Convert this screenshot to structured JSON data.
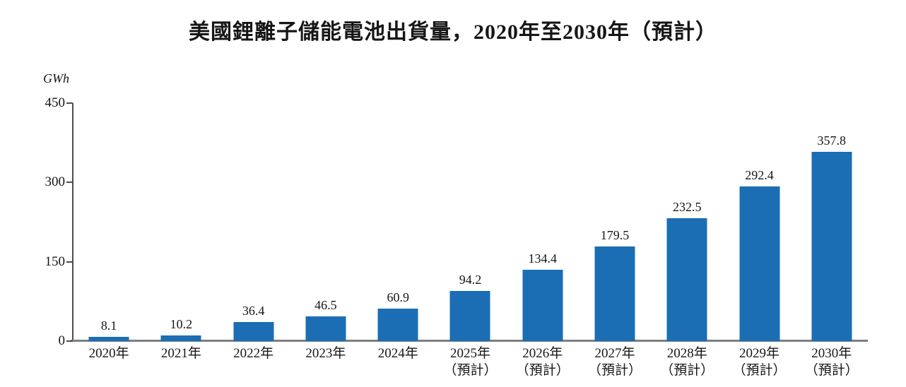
{
  "page": {
    "background": "#ffffff"
  },
  "chart_data": {
    "type": "bar",
    "title": "美國鋰離子儲能電池出貨量，2020年至2030年（預計）",
    "unit_label": "GWh",
    "categories": [
      "2020年",
      "2021年",
      "2022年",
      "2023年",
      "2024年",
      "2025年",
      "2026年",
      "2027年",
      "2028年",
      "2029年",
      "2030年"
    ],
    "category_sublabels": [
      "",
      "",
      "",
      "",
      "",
      "（預計）",
      "（預計）",
      "（預計）",
      "（預計）",
      "（預計）",
      "（預計）"
    ],
    "values": [
      8.1,
      10.2,
      36.4,
      46.5,
      60.9,
      94.2,
      134.4,
      179.5,
      232.5,
      292.4,
      357.8
    ],
    "value_labels": [
      "8.1",
      "10.2",
      "36.4",
      "46.5",
      "60.9",
      "94.2",
      "134.4",
      "179.5",
      "232.5",
      "292.4",
      "357.8"
    ],
    "yticks": [
      450,
      300,
      150,
      0
    ],
    "ylim": [
      0,
      450
    ],
    "grid": false,
    "legend": false,
    "bar_color": "#1b6eb4",
    "axis_color": "#4d4d4f",
    "baseline_color": "#7d7f82",
    "text_color": "#161616"
  }
}
